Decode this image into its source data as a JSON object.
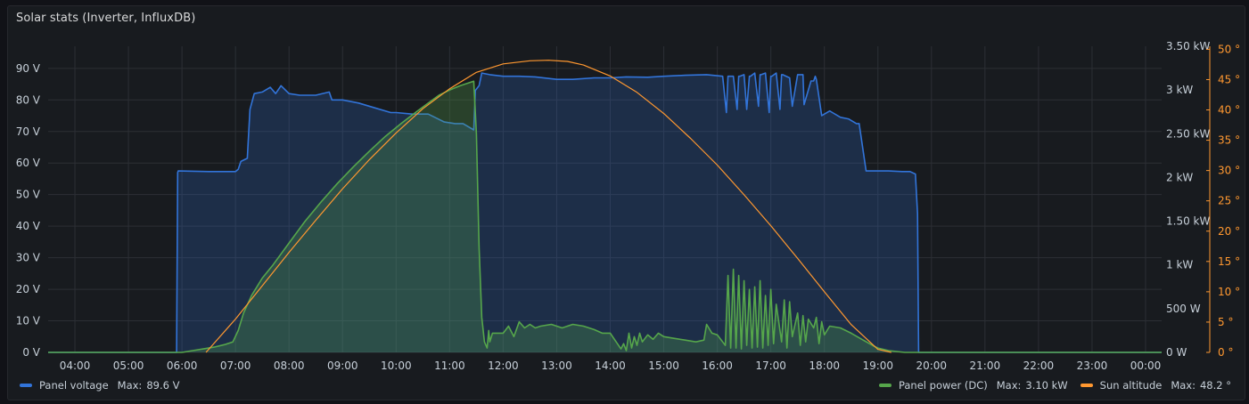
{
  "panel": {
    "title": "Solar stats (Inverter, InfluxDB)"
  },
  "colors": {
    "voltage": "#3274d9",
    "power": "#56a64b",
    "sun": "#ff9830",
    "grid": "#2c2f35",
    "text": "#c7d0d9"
  },
  "legend": {
    "left": [
      {
        "name": "Panel voltage",
        "max_label": "Max:",
        "max_value": "89.6 V",
        "color": "#3274d9"
      }
    ],
    "right": [
      {
        "name": "Panel power (DC)",
        "max_label": "Max:",
        "max_value": "3.10 kW",
        "color": "#56a64b"
      },
      {
        "name": "Sun altitude",
        "max_label": "Max:",
        "max_value": "48.2 °",
        "color": "#ff9830"
      }
    ]
  },
  "chart_data": {
    "type": "line",
    "x_unit": "hour of day",
    "xlim": [
      3.5,
      24.3
    ],
    "x_ticks": [
      4,
      5,
      6,
      7,
      8,
      9,
      10,
      11,
      12,
      13,
      14,
      15,
      16,
      17,
      18,
      19,
      20,
      21,
      22,
      23,
      24
    ],
    "x_tick_labels": [
      "04:00",
      "05:00",
      "06:00",
      "07:00",
      "08:00",
      "09:00",
      "10:00",
      "11:00",
      "12:00",
      "13:00",
      "14:00",
      "15:00",
      "16:00",
      "17:00",
      "18:00",
      "19:00",
      "20:00",
      "21:00",
      "22:00",
      "23:00",
      "00:00"
    ],
    "axes": {
      "left": {
        "unit": "V",
        "ylim": [
          0,
          97
        ],
        "ticks": [
          0,
          10,
          20,
          30,
          40,
          50,
          60,
          70,
          80,
          90
        ],
        "tick_labels": [
          "0 V",
          "10 V",
          "20 V",
          "30 V",
          "40 V",
          "50 V",
          "60 V",
          "70 V",
          "80 V",
          "90 V"
        ]
      },
      "right1": {
        "unit": "kW",
        "ylim": [
          0,
          3.5
        ],
        "ticks": [
          0,
          0.5,
          1,
          1.5,
          2,
          2.5,
          3,
          3.5
        ],
        "tick_labels": [
          "0 W",
          "500 W",
          "1 kW",
          "1.50 kW",
          "2 kW",
          "2.50 kW",
          "3 kW",
          "3.50 kW"
        ]
      },
      "right2": {
        "unit": "°",
        "ylim": [
          0,
          50.5
        ],
        "ticks": [
          0,
          5,
          10,
          15,
          20,
          25,
          30,
          35,
          40,
          45,
          50
        ],
        "tick_labels": [
          "0 °",
          "5 °",
          "10 °",
          "15 °",
          "20 °",
          "25 °",
          "30 °",
          "35 °",
          "40 °",
          "45 °",
          "50 °"
        ]
      }
    },
    "grid": true,
    "series": [
      {
        "name": "Panel voltage",
        "axis": "left",
        "fill": true,
        "x": [
          3.5,
          5.9,
          5.92,
          5.93,
          6.5,
          6.6,
          7.0,
          7.05,
          7.1,
          7.22,
          7.27,
          7.35,
          7.5,
          7.65,
          7.75,
          7.85,
          8.0,
          8.2,
          8.5,
          8.75,
          8.8,
          9.0,
          9.3,
          9.6,
          9.9,
          10.0,
          10.3,
          10.6,
          10.9,
          11.1,
          11.25,
          11.45,
          11.48,
          11.55,
          11.6,
          11.75,
          12.0,
          12.3,
          12.6,
          13.0,
          13.3,
          13.7,
          14.0,
          14.3,
          14.7,
          15.0,
          15.4,
          15.8,
          16.1,
          16.17,
          16.2,
          16.22,
          16.3,
          16.37,
          16.4,
          16.42,
          16.5,
          16.55,
          16.6,
          16.62,
          16.7,
          16.77,
          16.8,
          16.82,
          16.9,
          16.97,
          17.0,
          17.02,
          17.1,
          17.17,
          17.2,
          17.22,
          17.35,
          17.4,
          17.5,
          17.55,
          17.6,
          17.62,
          17.75,
          17.8,
          17.83,
          17.85,
          17.95,
          18.0,
          18.1,
          18.15,
          18.3,
          18.45,
          18.6,
          18.65,
          18.78,
          19.2,
          19.45,
          19.6,
          19.7,
          19.74,
          19.76,
          24.3
        ],
        "y": [
          0,
          0,
          57,
          57.5,
          57.3,
          57.3,
          57.3,
          58,
          60.5,
          61.5,
          77,
          82,
          82.5,
          84,
          82,
          84.5,
          82,
          81.5,
          81.5,
          82.5,
          80,
          80,
          79,
          77.5,
          76,
          76,
          75.5,
          75.5,
          73,
          72.5,
          72.5,
          70.5,
          83,
          84.5,
          88.5,
          88,
          87.5,
          87.5,
          87.3,
          86.5,
          86.5,
          87,
          87,
          87.3,
          87.2,
          87.5,
          87.8,
          88,
          87.5,
          76,
          87.5,
          87.5,
          87.5,
          77,
          87.5,
          87.5,
          88,
          77,
          87.5,
          87.5,
          88.5,
          78,
          88,
          88,
          88.5,
          76,
          87.5,
          87.5,
          88.5,
          77,
          88,
          88,
          87,
          78,
          88,
          88,
          88,
          78.5,
          86,
          86,
          87.5,
          86.5,
          75,
          75.5,
          76.5,
          76,
          74.5,
          74,
          72.5,
          72.5,
          57.5,
          57.5,
          57.3,
          57.3,
          56.5,
          44,
          0,
          0
        ]
      },
      {
        "name": "Panel power (DC)",
        "axis": "right1",
        "fill": true,
        "x": [
          3.5,
          6.0,
          6.2,
          6.4,
          6.6,
          6.8,
          6.95,
          7.05,
          7.15,
          7.3,
          7.5,
          7.7,
          8.0,
          8.3,
          8.6,
          8.9,
          9.2,
          9.5,
          9.8,
          10.1,
          10.4,
          10.6,
          10.8,
          11.0,
          11.2,
          11.35,
          11.45,
          11.5,
          11.55,
          11.6,
          11.65,
          11.7,
          11.73,
          11.75,
          11.8,
          12.0,
          12.1,
          12.2,
          12.3,
          12.4,
          12.5,
          12.6,
          12.7,
          12.9,
          13.1,
          13.3,
          13.5,
          13.7,
          13.85,
          14.0,
          14.2,
          14.25,
          14.3,
          14.35,
          14.4,
          14.45,
          14.5,
          14.55,
          14.6,
          14.7,
          14.8,
          14.9,
          15.0,
          15.2,
          15.4,
          15.6,
          15.75,
          15.8,
          15.9,
          16.0,
          16.1,
          16.15,
          16.2,
          16.25,
          16.3,
          16.35,
          16.4,
          16.45,
          16.5,
          16.55,
          16.6,
          16.65,
          16.7,
          16.75,
          16.8,
          16.85,
          16.9,
          16.95,
          17.0,
          17.05,
          17.1,
          17.2,
          17.25,
          17.3,
          17.35,
          17.4,
          17.5,
          17.55,
          17.6,
          17.65,
          17.7,
          17.8,
          17.85,
          17.9,
          17.95,
          18.0,
          18.1,
          18.3,
          18.5,
          18.7,
          18.9,
          19.0,
          19.2,
          19.5,
          24.3
        ],
        "y": [
          0,
          0,
          0.02,
          0.04,
          0.06,
          0.09,
          0.12,
          0.25,
          0.45,
          0.65,
          0.85,
          1.0,
          1.25,
          1.5,
          1.72,
          1.93,
          2.12,
          2.3,
          2.47,
          2.62,
          2.76,
          2.85,
          2.94,
          3.0,
          3.05,
          3.08,
          3.1,
          2.5,
          1.2,
          0.4,
          0.12,
          0.05,
          0.25,
          0.12,
          0.22,
          0.22,
          0.3,
          0.18,
          0.35,
          0.28,
          0.32,
          0.28,
          0.3,
          0.32,
          0.28,
          0.32,
          0.3,
          0.26,
          0.22,
          0.22,
          0.04,
          0.1,
          0.02,
          0.22,
          0.05,
          0.18,
          0.08,
          0.22,
          0.12,
          0.2,
          0.15,
          0.22,
          0.18,
          0.16,
          0.14,
          0.12,
          0.14,
          0.32,
          0.22,
          0.2,
          0.12,
          0.08,
          0.88,
          0.05,
          0.95,
          0.05,
          0.88,
          0.04,
          0.82,
          0.08,
          0.72,
          0.05,
          0.75,
          0.06,
          0.82,
          0.05,
          0.65,
          0.08,
          0.72,
          0.1,
          0.55,
          0.12,
          0.6,
          0.05,
          0.58,
          0.18,
          0.45,
          0.08,
          0.42,
          0.12,
          0.38,
          0.28,
          0.4,
          0.1,
          0.35,
          0.2,
          0.3,
          0.28,
          0.22,
          0.15,
          0.08,
          0.05,
          0.02,
          0,
          0
        ]
      },
      {
        "name": "Sun altitude",
        "axis": "right2",
        "fill": false,
        "x": [
          6.45,
          7.0,
          7.5,
          8.0,
          8.5,
          9.0,
          9.5,
          10.0,
          10.5,
          11.0,
          11.5,
          12.0,
          12.5,
          12.85,
          13.2,
          13.5,
          14.0,
          14.5,
          15.0,
          15.5,
          16.0,
          16.5,
          17.0,
          17.5,
          18.0,
          18.5,
          19.0,
          19.25
        ],
        "y": [
          0,
          5.5,
          11,
          16.5,
          21.8,
          27,
          31.8,
          36.2,
          40.2,
          43.5,
          46.2,
          47.6,
          48.1,
          48.2,
          48.0,
          47.4,
          45.6,
          42.9,
          39.4,
          35.3,
          30.9,
          26.0,
          20.9,
          15.5,
          10.0,
          4.6,
          0.5,
          0
        ]
      }
    ]
  }
}
